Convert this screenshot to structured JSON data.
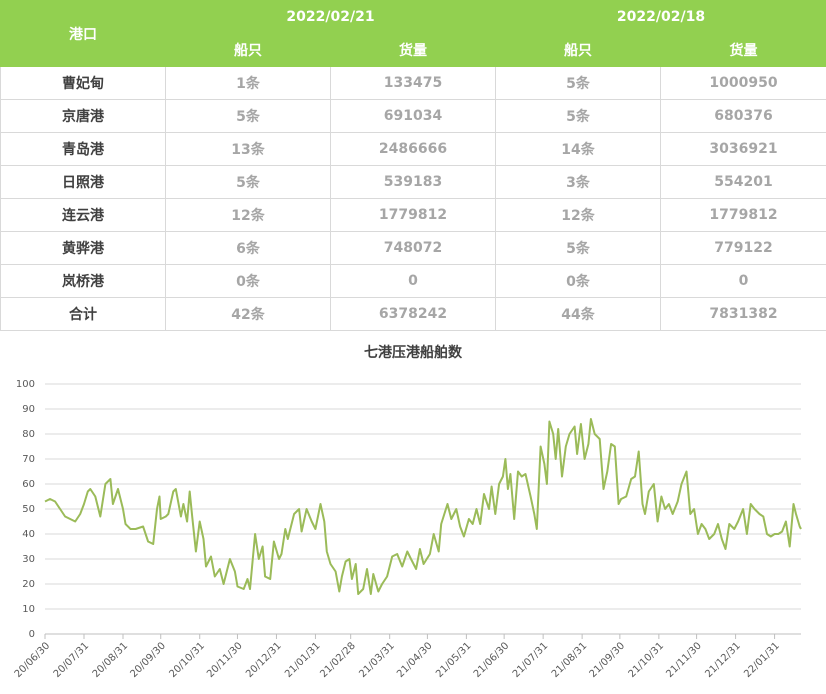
{
  "table": {
    "columns": {
      "port": "港口",
      "dates": [
        "2022/02/21",
        "2022/02/18"
      ],
      "sub": [
        "船只",
        "货量",
        "船只",
        "货量"
      ]
    },
    "rows": [
      [
        "曹妃甸",
        "1条",
        133475,
        "5条",
        1000950
      ],
      [
        "京唐港",
        "5条",
        691034,
        "5条",
        680376
      ],
      [
        "青岛港",
        "13条",
        2486666,
        "14条",
        3036921
      ],
      [
        "日照港",
        "5条",
        539183,
        "3条",
        554201
      ],
      [
        "连云港",
        "12条",
        1779812,
        "12条",
        1779812
      ],
      [
        "黄骅港",
        "6条",
        748072,
        "5条",
        779122
      ],
      [
        "岚桥港",
        "0条",
        0,
        "0条",
        0
      ],
      [
        "合计",
        "42条",
        6378242,
        "44条",
        7831382
      ]
    ]
  },
  "chart_data": {
    "type": "line",
    "title": "七港压港船舶数",
    "color": "#9bbb59",
    "grid": true,
    "xlim": [
      "20/06/30",
      "22/02/21"
    ],
    "xticks": [
      "20/06/30",
      "20/07/31",
      "20/08/31",
      "20/09/30",
      "20/10/31",
      "20/11/30",
      "20/12/31",
      "21/01/31",
      "21/02/28",
      "21/03/31",
      "21/04/30",
      "21/05/31",
      "21/06/30",
      "21/07/31",
      "21/08/31",
      "21/09/30",
      "21/10/31",
      "21/11/30",
      "21/12/31",
      "22/01/31"
    ],
    "ylim": [
      0,
      100
    ],
    "yticks": [
      0,
      10,
      20,
      30,
      40,
      50,
      60,
      70,
      80,
      90,
      100
    ],
    "x": [
      "20/06/30",
      "20/07/04",
      "20/07/08",
      "20/07/12",
      "20/07/16",
      "20/07/20",
      "20/07/24",
      "20/07/28",
      "20/07/31",
      "20/08/03",
      "20/08/05",
      "20/08/09",
      "20/08/13",
      "20/08/17",
      "20/08/21",
      "20/08/23",
      "20/08/27",
      "20/08/31",
      "20/09/02",
      "20/09/06",
      "20/09/10",
      "20/09/16",
      "20/09/20",
      "20/09/24",
      "20/09/27",
      "20/09/29",
      "20/09/30",
      "20/10/04",
      "20/10/06",
      "20/10/10",
      "20/10/12",
      "20/10/16",
      "20/10/18",
      "20/10/21",
      "20/10/23",
      "20/10/25",
      "20/10/28",
      "20/10/31",
      "20/11/03",
      "20/11/05",
      "20/11/09",
      "20/11/12",
      "20/11/16",
      "20/11/19",
      "20/11/24",
      "20/11/28",
      "20/11/30",
      "20/12/05",
      "20/12/08",
      "20/12/10",
      "20/12/14",
      "20/12/17",
      "20/12/20",
      "20/12/22",
      "20/12/26",
      "20/12/29",
      "21/01/02",
      "21/01/04",
      "21/01/07",
      "21/01/09",
      "21/01/14",
      "21/01/18",
      "21/01/20",
      "21/01/24",
      "21/01/28",
      "21/01/31",
      "21/02/04",
      "21/02/07",
      "21/02/09",
      "21/02/12",
      "21/02/16",
      "21/02/19",
      "21/02/21",
      "21/02/24",
      "21/02/27",
      "21/03/01",
      "21/03/04",
      "21/03/06",
      "21/03/10",
      "21/03/13",
      "21/03/16",
      "21/03/18",
      "21/03/22",
      "21/03/25",
      "21/03/29",
      "21/04/02",
      "21/04/06",
      "21/04/10",
      "21/04/14",
      "21/04/17",
      "21/04/21",
      "21/04/24",
      "21/04/27",
      "21/05/02",
      "21/05/05",
      "21/05/09",
      "21/05/11",
      "21/05/16",
      "21/05/19",
      "21/05/23",
      "21/05/26",
      "21/05/29",
      "21/06/02",
      "21/06/05",
      "21/06/08",
      "21/06/11",
      "21/06/14",
      "21/06/18",
      "21/06/20",
      "21/06/23",
      "21/06/26",
      "21/06/29",
      "21/07/01",
      "21/07/03",
      "21/07/05",
      "21/07/08",
      "21/07/11",
      "21/07/14",
      "21/07/17",
      "21/07/21",
      "21/07/24",
      "21/07/26",
      "21/07/29",
      "21/08/01",
      "21/08/03",
      "21/08/05",
      "21/08/08",
      "21/08/10",
      "21/08/12",
      "21/08/15",
      "21/08/18",
      "21/08/21",
      "21/08/25",
      "21/08/27",
      "21/08/30",
      "21/09/02",
      "21/09/05",
      "21/09/07",
      "21/09/10",
      "21/09/14",
      "21/09/17",
      "21/09/20",
      "21/09/23",
      "21/09/26",
      "21/09/29",
      "21/10/01",
      "21/10/05",
      "21/10/09",
      "21/10/12",
      "21/10/15",
      "21/10/18",
      "21/10/20",
      "21/10/23",
      "21/10/27",
      "21/10/30",
      "21/11/02",
      "21/11/05",
      "21/11/08",
      "21/11/11",
      "21/11/15",
      "21/11/18",
      "21/11/22",
      "21/11/25",
      "21/11/28",
      "21/12/01",
      "21/12/04",
      "21/12/07",
      "21/12/10",
      "21/12/14",
      "21/12/17",
      "21/12/20",
      "21/12/23",
      "21/12/26",
      "21/12/30",
      "22/01/02",
      "22/01/06",
      "22/01/09",
      "22/01/12",
      "22/01/15",
      "22/01/19",
      "22/01/22",
      "22/01/25",
      "22/01/28",
      "22/01/31",
      "22/02/03",
      "22/02/06",
      "22/02/09",
      "22/02/12",
      "22/02/15",
      "22/02/17",
      "22/02/20",
      "22/02/21"
    ],
    "values": [
      53,
      54,
      53,
      50,
      47,
      46,
      45,
      48,
      52,
      57,
      58,
      55,
      47,
      60,
      62,
      52,
      58,
      50,
      44,
      42,
      42,
      43,
      37,
      36,
      50,
      55,
      46,
      47,
      48,
      57,
      58,
      47,
      52,
      45,
      57,
      47,
      33,
      45,
      38,
      27,
      31,
      23,
      26,
      20,
      30,
      25,
      19,
      18,
      22,
      18,
      40,
      30,
      35,
      23,
      22,
      37,
      30,
      32,
      42,
      38,
      48,
      50,
      41,
      50,
      45,
      42,
      52,
      45,
      33,
      28,
      25,
      17,
      23,
      29,
      30,
      22,
      28,
      16,
      18,
      26,
      16,
      24,
      17,
      20,
      23,
      31,
      32,
      27,
      33,
      30,
      26,
      34,
      28,
      32,
      40,
      33,
      44,
      52,
      46,
      50,
      43,
      39,
      46,
      44,
      50,
      44,
      56,
      50,
      59,
      48,
      60,
      63,
      70,
      58,
      64,
      46,
      65,
      63,
      64,
      55,
      48,
      42,
      75,
      68,
      60,
      85,
      80,
      70,
      82,
      63,
      75,
      80,
      83,
      72,
      84,
      70,
      76,
      86,
      80,
      78,
      58,
      65,
      76,
      75,
      52,
      54,
      55,
      62,
      63,
      73,
      52,
      48,
      57,
      60,
      45,
      55,
      50,
      52,
      48,
      53,
      60,
      65,
      48,
      50,
      40,
      44,
      42,
      38,
      40,
      44,
      38,
      34,
      44,
      42,
      45,
      50,
      40,
      52,
      50,
      48,
      47,
      40,
      39,
      40,
      40,
      41,
      45,
      35,
      52,
      48,
      43,
      42
    ]
  }
}
